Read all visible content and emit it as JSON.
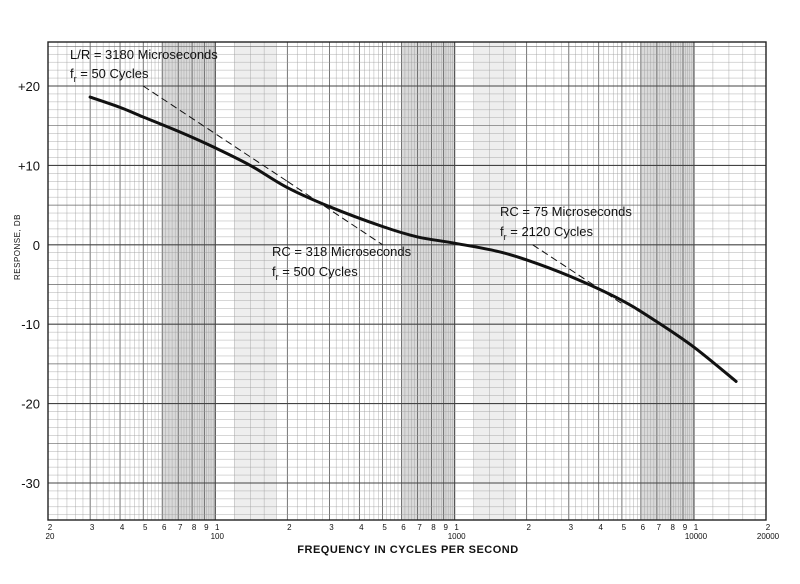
{
  "chart_data": {
    "type": "line",
    "title": "",
    "xlabel": "FREQUENCY IN CYCLES PER SECOND",
    "ylabel": "RESPONSE, DB",
    "xscale": "log",
    "xlim": [
      20,
      20000
    ],
    "ylim": [
      -35,
      25
    ],
    "grid": true,
    "x_major_ticks": [
      {
        "value": 20,
        "label": "20"
      },
      {
        "value": 100,
        "label": "100"
      },
      {
        "value": 1000,
        "label": "1000"
      },
      {
        "value": 10000,
        "label": "10000"
      },
      {
        "value": 20000,
        "label": "20000"
      }
    ],
    "x_minor_ticks": [
      {
        "value": 20,
        "label": "2"
      },
      {
        "value": 30,
        "label": "3"
      },
      {
        "value": 40,
        "label": "4"
      },
      {
        "value": 50,
        "label": "5"
      },
      {
        "value": 60,
        "label": "6"
      },
      {
        "value": 70,
        "label": "7"
      },
      {
        "value": 80,
        "label": "8"
      },
      {
        "value": 90,
        "label": "9"
      },
      {
        "value": 100,
        "label": "1"
      },
      {
        "value": 200,
        "label": "2"
      },
      {
        "value": 300,
        "label": "3"
      },
      {
        "value": 400,
        "label": "4"
      },
      {
        "value": 500,
        "label": "5"
      },
      {
        "value": 600,
        "label": "6"
      },
      {
        "value": 700,
        "label": "7"
      },
      {
        "value": 800,
        "label": "8"
      },
      {
        "value": 900,
        "label": "9"
      },
      {
        "value": 1000,
        "label": "1"
      },
      {
        "value": 2000,
        "label": "2"
      },
      {
        "value": 3000,
        "label": "3"
      },
      {
        "value": 4000,
        "label": "4"
      },
      {
        "value": 5000,
        "label": "5"
      },
      {
        "value": 6000,
        "label": "6"
      },
      {
        "value": 7000,
        "label": "7"
      },
      {
        "value": 8000,
        "label": "8"
      },
      {
        "value": 9000,
        "label": "9"
      },
      {
        "value": 10000,
        "label": "1"
      },
      {
        "value": 20000,
        "label": "2"
      }
    ],
    "y_ticks": [
      {
        "value": 20,
        "label": "+20"
      },
      {
        "value": 10,
        "label": "+10"
      },
      {
        "value": 0,
        "label": "0"
      },
      {
        "value": -10,
        "label": "-10"
      },
      {
        "value": -20,
        "label": "-20"
      },
      {
        "value": -30,
        "label": "-30"
      }
    ],
    "series": [
      {
        "x": [
          30,
          40,
          50,
          70,
          100,
          140,
          200,
          300,
          500,
          700,
          1000,
          1500,
          2000,
          3000,
          5000,
          7000,
          10000,
          15000
        ],
        "y": [
          18.6,
          17.3,
          16.1,
          14.3,
          12.2,
          10.0,
          7.2,
          4.8,
          2.3,
          1.0,
          0.2,
          -0.8,
          -1.9,
          -3.9,
          -7.0,
          -9.7,
          -12.9,
          -17.2
        ]
      },
      {
        "x": [
          50,
          200
        ],
        "y": [
          20.0,
          8.0
        ]
      },
      {
        "x": [
          200,
          500
        ],
        "y": [
          8.0,
          0.0
        ]
      },
      {
        "x": [
          2120,
          5000
        ],
        "y": [
          0.0,
          -7.4
        ]
      }
    ],
    "annotations": [
      {
        "lines": [
          {
            "text": "L/R = 3180  Microseconds"
          },
          {
            "main": "f",
            "sub": "r",
            "rest": " = 50  Cycles"
          }
        ]
      },
      {
        "lines": [
          {
            "text": "RC = 318 Microseconds"
          },
          {
            "main": "f",
            "sub": "r",
            "rest": " = 500  Cycles"
          }
        ]
      },
      {
        "lines": [
          {
            "text": "RC = 75  Microseconds"
          },
          {
            "main": "f",
            "sub": "r",
            "rest": " = 2120  Cycles"
          }
        ]
      }
    ]
  }
}
